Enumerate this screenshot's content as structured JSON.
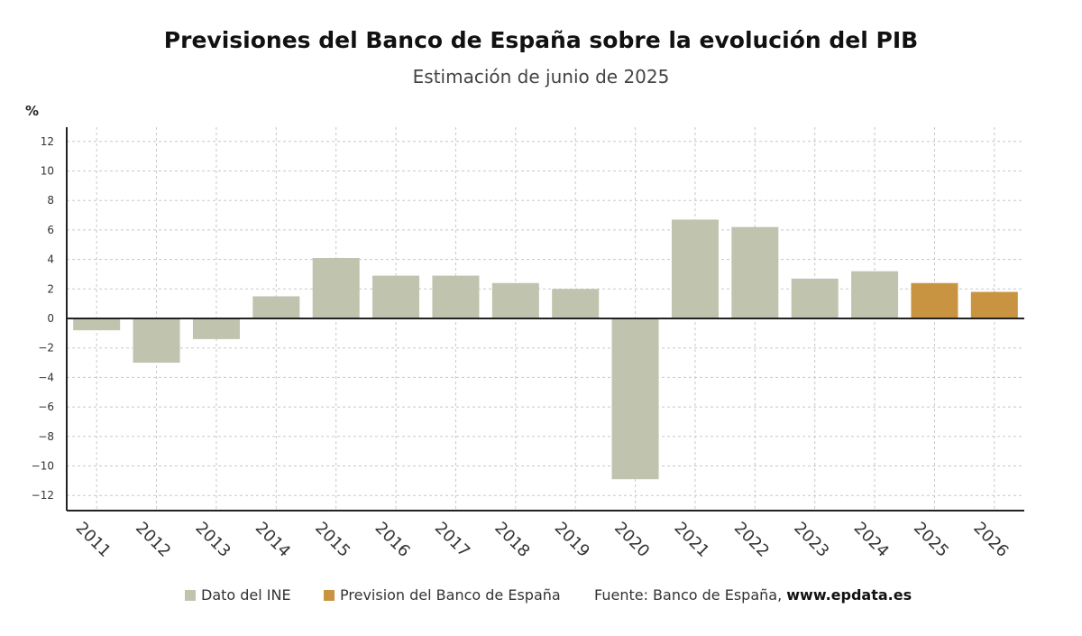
{
  "chart_data": {
    "type": "bar",
    "title": "Previsiones del Banco de España sobre la evolución del PIB",
    "subtitle": "Estimación de junio de 2025",
    "ylabel": "%",
    "ylim": [
      -13,
      14
    ],
    "yticks": [
      12,
      10,
      8,
      6,
      4,
      2,
      0,
      -2,
      -4,
      -6,
      -8,
      -10,
      -12
    ],
    "ytick_labels": [
      "12",
      "10",
      "8",
      "6",
      "4",
      "2",
      "0",
      "−2",
      "−4",
      "−6",
      "−8",
      "−10",
      "−12"
    ],
    "grid": true,
    "categories": [
      "2011",
      "2012",
      "2013",
      "2014",
      "2015",
      "2016",
      "2017",
      "2018",
      "2019",
      "2020",
      "2021",
      "2022",
      "2023",
      "2024",
      "2025",
      "2026"
    ],
    "values": [
      -0.8,
      -3.0,
      -1.4,
      1.5,
      4.1,
      2.9,
      2.9,
      2.4,
      2.0,
      -10.9,
      6.7,
      6.2,
      2.7,
      3.2,
      2.4,
      1.8
    ],
    "series_of_point": [
      "Dato del INE",
      "Dato del INE",
      "Dato del INE",
      "Dato del INE",
      "Dato del INE",
      "Dato del INE",
      "Dato del INE",
      "Dato del INE",
      "Dato del INE",
      "Dato del INE",
      "Dato del INE",
      "Dato del INE",
      "Dato del INE",
      "Dato del INE",
      "Prevision del Banco de España",
      "Prevision del Banco de España"
    ],
    "series": [
      {
        "name": "Dato del INE",
        "color": "#c0c3ae"
      },
      {
        "name": "Prevision del Banco de España",
        "color": "#c89441"
      }
    ],
    "legend_position": "bottom"
  },
  "source": {
    "prefix": "Fuente: Banco de España, ",
    "site": "www.epdata.es"
  },
  "colors": {
    "ine": "#c0c3ae",
    "forecast": "#c89441",
    "axis": "#222222",
    "grid": "#c8c8c8"
  }
}
